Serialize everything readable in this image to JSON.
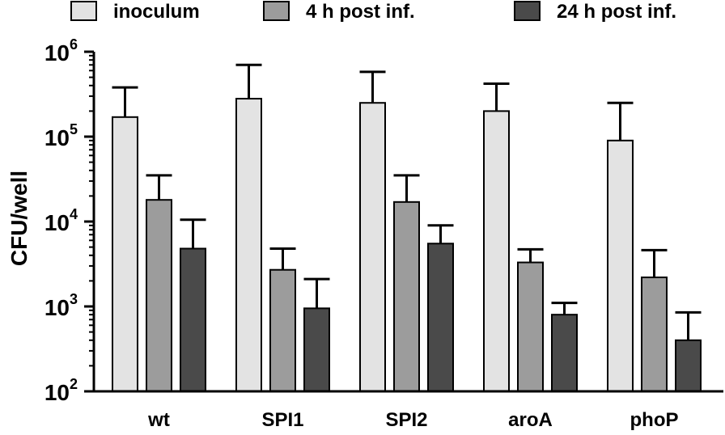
{
  "chart_data": {
    "type": "bar",
    "yscale": "log",
    "ylabel": "CFU/well",
    "xlabel": "",
    "ylim": [
      100,
      1000000
    ],
    "y_ticks": [
      {
        "base": "10",
        "exp": "2",
        "value": 100
      },
      {
        "base": "10",
        "exp": "3",
        "value": 1000
      },
      {
        "base": "10",
        "exp": "4",
        "value": 10000
      },
      {
        "base": "10",
        "exp": "5",
        "value": 100000
      },
      {
        "base": "10",
        "exp": "6",
        "value": 1000000
      }
    ],
    "categories": [
      "wt",
      "SPI1",
      "SPI2",
      "aroA",
      "phoP"
    ],
    "legend_position": "top",
    "series": [
      {
        "name": "inoculum",
        "color": "#e3e3e3",
        "values": [
          170000,
          280000,
          250000,
          200000,
          90000
        ],
        "error_upper": [
          380000,
          700000,
          580000,
          420000,
          250000
        ]
      },
      {
        "name": "4 h post inf.",
        "color": "#9c9c9c",
        "values": [
          18000,
          2700,
          17000,
          3300,
          2200
        ],
        "error_upper": [
          35000,
          4800,
          35000,
          4700,
          4600
        ]
      },
      {
        "name": "24 h post inf.",
        "color": "#4a4a4a",
        "values": [
          4800,
          950,
          5500,
          800,
          400
        ],
        "error_upper": [
          10500,
          2100,
          9000,
          1100,
          850
        ]
      }
    ]
  }
}
